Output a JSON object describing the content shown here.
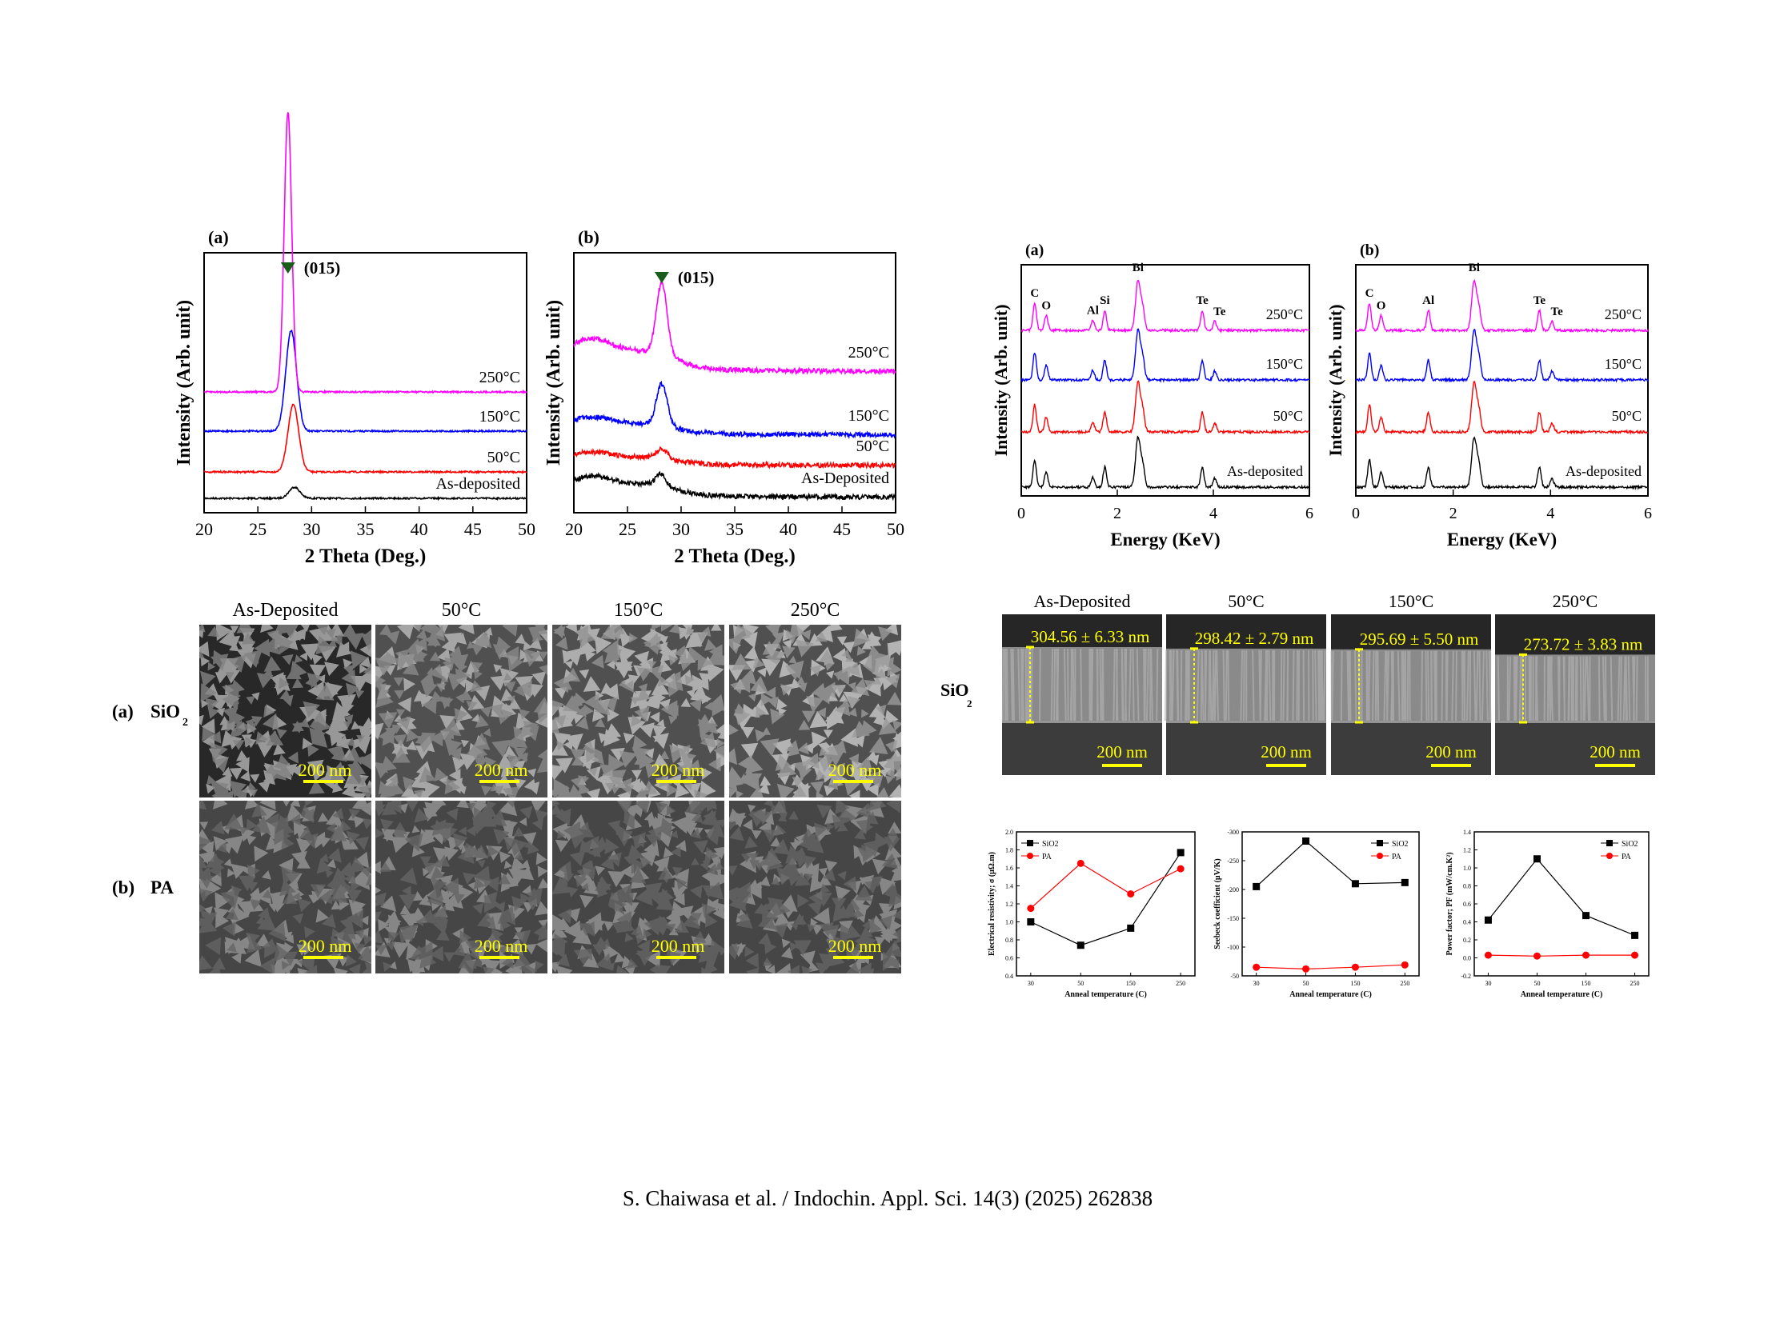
{
  "caption": "S. Chaiwasa et al. / Indochin. Appl. Sci. 14(3) (2025) 262838",
  "colors": {
    "as_deposited": "#000000",
    "c50": "#ff0000",
    "c150": "#0000ff",
    "c250": "#ff00ff",
    "marker": "#1a5c1a",
    "scale_bar": "#ffff00"
  },
  "chart_data": [
    {
      "type": "line",
      "panel": "(a)",
      "xlabel": "2 Theta (Deg.)",
      "ylabel": "Intensity (Arb. unit)",
      "xlim": [
        20,
        50
      ],
      "xticks": [
        "20",
        "25",
        "30",
        "35",
        "40",
        "45",
        "50"
      ],
      "annotation": "(015)",
      "annotation_x": 27.8,
      "series": [
        {
          "name": "As-deposited",
          "peak_2theta": 28.4,
          "relative_intensity": 4
        },
        {
          "name": "50°C",
          "peak_2theta": 28.3,
          "relative_intensity": 24
        },
        {
          "name": "150°C",
          "peak_2theta": 28.1,
          "relative_intensity": 36
        },
        {
          "name": "250°C",
          "peak_2theta": 27.8,
          "relative_intensity": 100
        }
      ]
    },
    {
      "type": "line",
      "panel": "(b)",
      "xlabel": "2 Theta (Deg.)",
      "ylabel": "Intensity (Arb. unit)",
      "xlim": [
        20,
        50
      ],
      "xticks": [
        "20",
        "25",
        "30",
        "35",
        "40",
        "45",
        "50"
      ],
      "annotation": "(015)",
      "annotation_x": 28.2,
      "series": [
        {
          "name": "As-Deposited",
          "peak_2theta": 28.1,
          "relative_intensity": 10
        },
        {
          "name": "50°C",
          "peak_2theta": 28.2,
          "relative_intensity": 8
        },
        {
          "name": "150°C",
          "peak_2theta": 28.2,
          "relative_intensity": 35
        },
        {
          "name": "250°C",
          "peak_2theta": 28.2,
          "relative_intensity": 60
        }
      ]
    },
    {
      "type": "line",
      "panel": "(a)",
      "xlabel": "Energy (KeV)",
      "ylabel": "Intensity (Arb. unit)",
      "xlim": [
        0,
        6
      ],
      "xticks": [
        "0",
        "2",
        "4",
        "6"
      ],
      "peaks": [
        {
          "label": "C",
          "energy": 0.28,
          "rel": 0.55
        },
        {
          "label": "O",
          "energy": 0.52,
          "rel": 0.3
        },
        {
          "label": "Al",
          "energy": 1.49,
          "rel": 0.2
        },
        {
          "label": "Si",
          "energy": 1.74,
          "rel": 0.4
        },
        {
          "label": "Bi",
          "energy": 2.43,
          "rel": 1.0
        },
        {
          "label": "Te",
          "energy": 3.77,
          "rel": 0.4
        },
        {
          "label": "Te",
          "energy": 4.03,
          "rel": 0.18
        }
      ],
      "series": [
        {
          "name": "As-deposited"
        },
        {
          "name": "50°C"
        },
        {
          "name": "150°C"
        },
        {
          "name": "250°C"
        }
      ]
    },
    {
      "type": "line",
      "panel": "(b)",
      "xlabel": "Energy (KeV)",
      "ylabel": "Intensity (Arb. unit)",
      "xlim": [
        0,
        6
      ],
      "xticks": [
        "0",
        "2",
        "4",
        "6"
      ],
      "peaks": [
        {
          "label": "C",
          "energy": 0.28,
          "rel": 0.55
        },
        {
          "label": "O",
          "energy": 0.52,
          "rel": 0.3
        },
        {
          "label": "Al",
          "energy": 1.49,
          "rel": 0.4
        },
        {
          "label": "Bi",
          "energy": 2.43,
          "rel": 1.0
        },
        {
          "label": "Te",
          "energy": 3.77,
          "rel": 0.4
        },
        {
          "label": "Te",
          "energy": 4.03,
          "rel": 0.18
        }
      ],
      "series": [
        {
          "name": "As-deposited"
        },
        {
          "name": "50°C"
        },
        {
          "name": "150°C"
        },
        {
          "name": "250°C"
        }
      ]
    },
    {
      "type": "line",
      "xlabel": "Anneal temperature (C)",
      "ylabel": "Electrical resistivity; σ (μΩ.m)",
      "categories": [
        "30",
        "50",
        "150",
        "250"
      ],
      "ylim": [
        0.4,
        2.0
      ],
      "yticks": [
        "0.4",
        "0.6",
        "0.8",
        "1.0",
        "1.2",
        "1.4",
        "1.6",
        "1.8",
        "2.0"
      ],
      "legend": "top-left",
      "series": [
        {
          "name": "SiO2",
          "values": [
            1.0,
            0.74,
            0.93,
            1.77
          ]
        },
        {
          "name": "PA",
          "values": [
            1.15,
            1.65,
            1.31,
            1.59
          ]
        }
      ]
    },
    {
      "type": "line",
      "xlabel": "Anneal temperature (C)",
      "ylabel": "Seebeck coefficient (μV/K)",
      "categories": [
        "30",
        "50",
        "150",
        "250"
      ],
      "ylim": [
        -50,
        -300
      ],
      "inverted": true,
      "yticks": [
        "-50",
        "-100",
        "-150",
        "-200",
        "-250",
        "-300"
      ],
      "legend": "top-right",
      "series": [
        {
          "name": "SiO2",
          "values": [
            -205,
            -284,
            -210,
            -212
          ]
        },
        {
          "name": "PA",
          "values": [
            -65,
            -62,
            -65,
            -69
          ]
        }
      ]
    },
    {
      "type": "line",
      "xlabel": "Anneal temperature (C)",
      "ylabel": "Power factor; PF (mW/cm.K²)",
      "categories": [
        "30",
        "50",
        "150",
        "250"
      ],
      "ylim": [
        -0.2,
        1.4
      ],
      "yticks": [
        "-0.2",
        "0.0",
        "0.2",
        "0.4",
        "0.6",
        "0.8",
        "1.0",
        "1.2",
        "1.4"
      ],
      "legend": "top-right",
      "series": [
        {
          "name": "SiO2",
          "values": [
            0.42,
            1.1,
            0.47,
            0.25
          ]
        },
        {
          "name": "PA",
          "values": [
            0.03,
            0.02,
            0.03,
            0.03
          ]
        }
      ]
    }
  ],
  "sem_top": {
    "columns": [
      "As-Deposited",
      "50°C",
      "150°C",
      "250°C"
    ],
    "rows": [
      {
        "tag": "(a)",
        "label": "SiO",
        "sub": "2"
      },
      {
        "tag": "(b)",
        "label": "PA",
        "sub": ""
      }
    ],
    "scale_bar": "200 nm"
  },
  "sem_cross": {
    "columns": [
      "As-Deposited",
      "50°C",
      "150°C",
      "250°C"
    ],
    "row_label": "SiO",
    "row_sub": "2",
    "thickness": [
      "304.56 ± 6.33 nm",
      "298.42 ± 2.79 nm",
      "295.69 ± 5.50 nm",
      "273.72 ± 3.83 nm"
    ],
    "thickness_fraction": [
      1.0,
      0.98,
      0.97,
      0.9
    ],
    "scale_bar": "200 nm"
  }
}
